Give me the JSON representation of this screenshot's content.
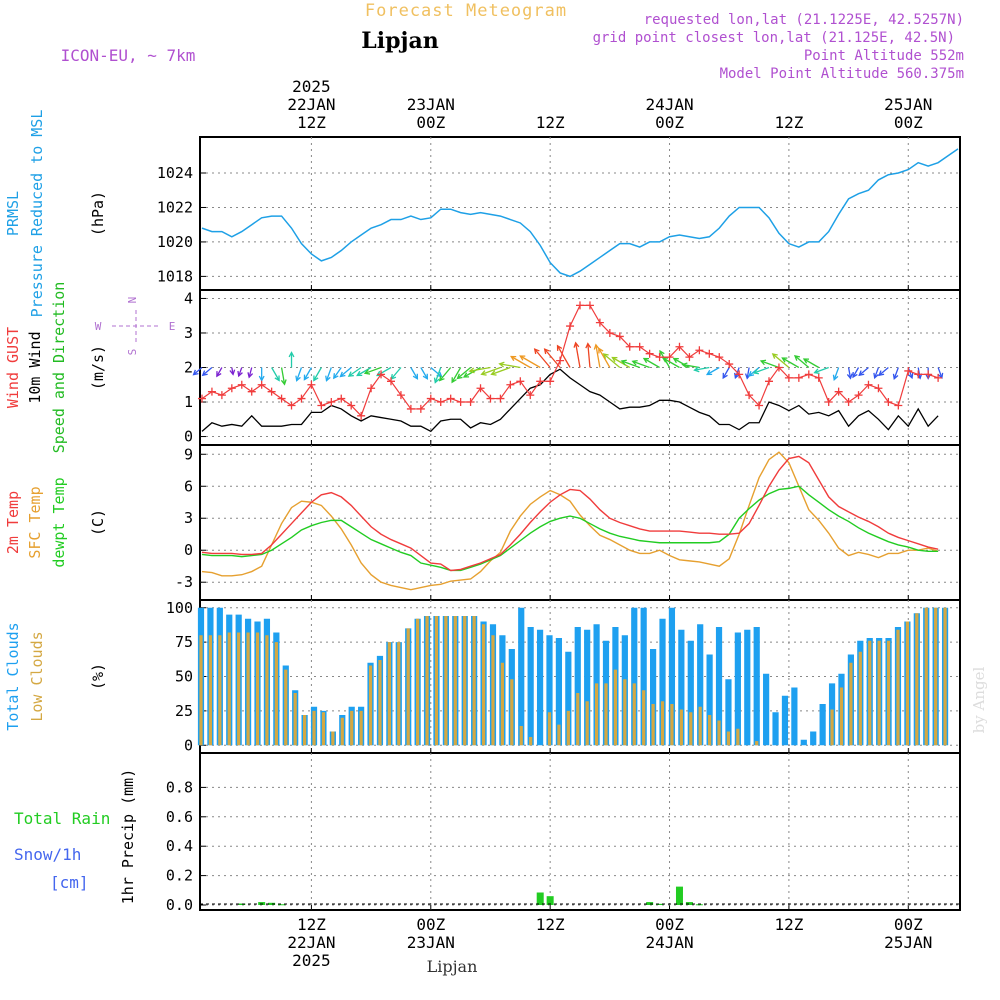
{
  "header": {
    "title_top": "Forecast Meteogram",
    "location": "Lipjan",
    "model": "ICON-EU, ~ 7km",
    "requested": "requested lon,lat (21.1225E, 42.5257N)",
    "grid_point": "grid point closest lon,lat (21.125E, 42.5N)",
    "point_altitude": "Point Altitude 552m",
    "model_altitude": "Model Point Altitude 560.375m",
    "footer_location": "Lipjan",
    "watermark": "by Angel"
  },
  "colors": {
    "prmsl": "#1ea0e6",
    "gust": "#f03c3c",
    "wind": "#000000",
    "wind_dir_label": "#22bb22",
    "temp2m": "#f03c3c",
    "sfc_temp": "#e6a030",
    "dewpt": "#22cc22",
    "total_clouds": "#1ea0f0",
    "low_clouds": "#d4a843",
    "rain": "#22cc22",
    "snow": "#4466ee",
    "axis_label": "#000000",
    "compass": "#b070d0",
    "header_purple": "#b050d0",
    "header_orange": "#f0c060",
    "grid": "#888888"
  },
  "time_axis": {
    "top_ticks": [
      {
        "t": 0,
        "lines": [
          "2025",
          "22JAN",
          "12Z"
        ]
      },
      {
        "t": 12,
        "lines": [
          "23JAN",
          "00Z"
        ]
      },
      {
        "t": 24,
        "lines": [
          "12Z"
        ]
      },
      {
        "t": 36,
        "lines": [
          "24JAN",
          "00Z"
        ]
      },
      {
        "t": 48,
        "lines": [
          "12Z"
        ]
      },
      {
        "t": 60,
        "lines": [
          "25JAN",
          "00Z"
        ]
      }
    ],
    "bottom_ticks": [
      {
        "t": 0,
        "lines": [
          "12Z",
          "22JAN",
          "2025"
        ]
      },
      {
        "t": 12,
        "lines": [
          "00Z",
          "23JAN"
        ]
      },
      {
        "t": 24,
        "lines": [
          "12Z"
        ]
      },
      {
        "t": 36,
        "lines": [
          "00Z",
          "24JAN"
        ]
      },
      {
        "t": 48,
        "lines": [
          "12Z"
        ]
      },
      {
        "t": 60,
        "lines": [
          "00Z",
          "25JAN"
        ]
      }
    ],
    "t_min": -11.2,
    "t_max": 65.2
  },
  "panels": [
    {
      "id": "pressure",
      "labels": [
        {
          "text": "PRMSL",
          "color": "#1ea0e6"
        },
        {
          "text": "Pressure Reduced to MSL",
          "color": "#1ea0e6"
        }
      ],
      "unit": "(hPa)",
      "ylim": [
        1017.5,
        1025.8
      ],
      "yticks": [
        1018,
        1020,
        1022,
        1024
      ]
    },
    {
      "id": "wind",
      "labels": [
        {
          "text": "Wind GUST",
          "color": "#f03c3c"
        },
        {
          "text": "10m Wind",
          "color": "#000000"
        },
        {
          "text": "Speed and Direction",
          "color": "#22bb22"
        }
      ],
      "unit": "(m/s)",
      "ylim": [
        -0.1,
        4.1
      ],
      "yticks": [
        0,
        1,
        2,
        3,
        4
      ],
      "compass": {
        "n": "N",
        "s": "S",
        "w": "W",
        "e": "E"
      }
    },
    {
      "id": "temp",
      "labels": [
        {
          "text": "2m Temp",
          "color": "#f03c3c"
        },
        {
          "text": "SFC Temp",
          "color": "#e6a030"
        },
        {
          "text": "dewpt Temp",
          "color": "#22cc22"
        }
      ],
      "unit": "(C)",
      "ylim": [
        -4.2,
        9.4
      ],
      "yticks": [
        -3,
        0,
        3,
        6,
        9
      ]
    },
    {
      "id": "clouds",
      "labels": [
        {
          "text": "Total Clouds",
          "color": "#1ea0f0"
        },
        {
          "text": "Low Clouds",
          "color": "#d4a843"
        }
      ],
      "unit": "(%)",
      "ylim": [
        -2,
        102
      ],
      "yticks": [
        0,
        25,
        50,
        75,
        100
      ]
    },
    {
      "id": "precip",
      "labels": [],
      "unit": "1hr Precip (mm)",
      "ylim": [
        0,
        1.0
      ],
      "yticks": [
        0,
        0.2,
        0.4,
        0.6,
        0.8
      ],
      "legend": {
        "total_rain": "Total  Rain",
        "snow": "Snow/1h",
        "snow_unit": "[cm]"
      }
    }
  ],
  "chart_data": {
    "type": "line",
    "x_unit": "hours from 22JAN 12Z",
    "pressure": {
      "name": "PRMSL",
      "x": [
        -11,
        -10,
        -9,
        -8,
        -7,
        -6,
        -5,
        -4,
        -3,
        -2,
        -1,
        0,
        1,
        2,
        3,
        4,
        5,
        6,
        7,
        8,
        9,
        10,
        11,
        12,
        13,
        14,
        15,
        16,
        17,
        18,
        19,
        20,
        21,
        22,
        23,
        24,
        25,
        26,
        27,
        28,
        29,
        30,
        31,
        32,
        33,
        34,
        35,
        36,
        37,
        38,
        39,
        40,
        41,
        42,
        43,
        44,
        45,
        46,
        47,
        48,
        49,
        50,
        51,
        52,
        53,
        54,
        55,
        56,
        57,
        58,
        59,
        60,
        61,
        62,
        63,
        64,
        65
      ],
      "values": [
        1020.8,
        1020.6,
        1020.6,
        1020.3,
        1020.6,
        1021.0,
        1021.4,
        1021.5,
        1021.5,
        1020.8,
        1019.9,
        1019.3,
        1018.9,
        1019.1,
        1019.5,
        1020.0,
        1020.4,
        1020.8,
        1021.0,
        1021.3,
        1021.3,
        1021.5,
        1021.3,
        1021.4,
        1021.9,
        1021.9,
        1021.7,
        1021.6,
        1021.7,
        1021.6,
        1021.5,
        1021.3,
        1021.1,
        1020.6,
        1019.8,
        1018.8,
        1018.2,
        1018.0,
        1018.3,
        1018.7,
        1019.1,
        1019.5,
        1019.9,
        1019.9,
        1019.7,
        1020.0,
        1020.0,
        1020.3,
        1020.4,
        1020.3,
        1020.2,
        1020.3,
        1020.8,
        1021.5,
        1022.0,
        1022.0,
        1022.0,
        1021.4,
        1020.5,
        1019.9,
        1019.7,
        1020.0,
        1020.0,
        1020.6,
        1021.6,
        1022.5,
        1022.8,
        1023.0,
        1023.6,
        1023.9,
        1024.0,
        1024.2,
        1024.6,
        1024.4,
        1024.6,
        1025.0,
        1025.4
      ]
    },
    "gust": {
      "name": "Wind GUST",
      "values": [
        1.1,
        1.3,
        1.2,
        1.4,
        1.5,
        1.3,
        1.5,
        1.3,
        1.1,
        0.9,
        1.1,
        1.5,
        0.9,
        1.0,
        1.1,
        0.9,
        0.6,
        1.4,
        1.8,
        1.6,
        1.2,
        0.8,
        0.8,
        1.1,
        1.0,
        1.1,
        1.0,
        1.0,
        1.4,
        1.1,
        1.1,
        1.5,
        1.6,
        1.2,
        1.6,
        1.6,
        2.2,
        3.2,
        3.8,
        3.8,
        3.3,
        3.0,
        2.9,
        2.6,
        2.6,
        2.4,
        2.3,
        2.3,
        2.6,
        2.3,
        2.5,
        2.4,
        2.3,
        2.1,
        1.8,
        1.2,
        0.9,
        1.6,
        2.0,
        1.7,
        1.7,
        1.8,
        1.7,
        1.0,
        1.3,
        1.0,
        1.2,
        1.5,
        1.4,
        1.0,
        0.9,
        1.9,
        1.8,
        1.8,
        1.7
      ]
    },
    "wind10m": {
      "name": "10m Wind",
      "values": [
        0.15,
        0.4,
        0.3,
        0.35,
        0.3,
        0.6,
        0.3,
        0.3,
        0.3,
        0.35,
        0.35,
        0.7,
        0.7,
        0.9,
        0.8,
        0.6,
        0.45,
        0.6,
        0.55,
        0.5,
        0.45,
        0.3,
        0.3,
        0.15,
        0.45,
        0.5,
        0.5,
        0.25,
        0.4,
        0.35,
        0.5,
        0.8,
        1.1,
        1.4,
        1.5,
        1.8,
        1.95,
        1.7,
        1.5,
        1.3,
        1.2,
        1.0,
        0.8,
        0.85,
        0.85,
        0.9,
        1.05,
        1.05,
        1.0,
        0.85,
        0.7,
        0.6,
        0.35,
        0.35,
        0.2,
        0.4,
        0.4,
        1.0,
        0.9,
        0.75,
        0.9,
        0.65,
        0.7,
        0.6,
        0.75,
        0.3,
        0.6,
        0.75,
        0.5,
        0.2,
        0.6,
        0.3,
        0.8,
        0.3,
        0.6
      ]
    },
    "temp2m": {
      "name": "2m Temp",
      "values": [
        -0.2,
        -0.3,
        -0.3,
        -0.3,
        -0.4,
        -0.4,
        -0.3,
        0.5,
        1.5,
        2.5,
        3.5,
        4.5,
        5.2,
        5.4,
        5.0,
        4.2,
        3.2,
        2.2,
        1.5,
        1.0,
        0.6,
        0.2,
        -0.5,
        -1.2,
        -1.3,
        -1.9,
        -1.8,
        -1.5,
        -1.2,
        -0.8,
        -0.4,
        0.5,
        1.5,
        2.6,
        3.6,
        4.5,
        5.2,
        5.7,
        5.6,
        4.8,
        3.8,
        3.0,
        2.6,
        2.3,
        2.0,
        1.8,
        1.8,
        1.8,
        1.8,
        1.7,
        1.6,
        1.6,
        1.5,
        1.5,
        1.6,
        2.5,
        4.2,
        6.0,
        7.5,
        8.6,
        8.8,
        8.2,
        6.6,
        5.0,
        4.1,
        3.6,
        3.1,
        2.7,
        2.2,
        1.6,
        1.2,
        0.9,
        0.6,
        0.3,
        0.1
      ]
    },
    "sfc_temp": {
      "name": "SFC Temp",
      "values": [
        -2.0,
        -2.1,
        -2.4,
        -2.4,
        -2.3,
        -2.0,
        -1.5,
        0.5,
        2.5,
        4.0,
        4.6,
        4.5,
        4.2,
        3.2,
        2.0,
        0.5,
        -1.2,
        -2.3,
        -3.0,
        -3.3,
        -3.5,
        -3.7,
        -3.5,
        -3.3,
        -3.2,
        -2.9,
        -2.8,
        -2.7,
        -2.0,
        -1.0,
        -0.2,
        1.8,
        3.2,
        4.3,
        5.0,
        5.6,
        5.2,
        4.6,
        3.3,
        2.3,
        1.4,
        1.0,
        0.5,
        0.0,
        -0.3,
        -0.3,
        0.0,
        -0.5,
        -0.9,
        -1.0,
        -1.1,
        -1.3,
        -1.5,
        -0.8,
        1.5,
        4.2,
        6.8,
        8.5,
        9.2,
        8.2,
        6.0,
        3.8,
        2.8,
        1.6,
        0.2,
        -0.5,
        -0.2,
        -0.4,
        -0.7,
        -0.3,
        -0.3,
        0.0,
        0.0,
        0.2,
        -0.1
      ]
    },
    "dewpt": {
      "name": "dewpt Temp",
      "values": [
        -0.4,
        -0.5,
        -0.5,
        -0.5,
        -0.6,
        -0.5,
        -0.4,
        0.0,
        0.6,
        1.2,
        1.9,
        2.3,
        2.6,
        2.8,
        2.8,
        2.2,
        1.6,
        1.0,
        0.6,
        0.2,
        -0.2,
        -0.5,
        -1.2,
        -1.4,
        -1.6,
        -1.9,
        -1.9,
        -1.6,
        -1.3,
        -0.9,
        -0.5,
        0.2,
        0.9,
        1.6,
        2.2,
        2.7,
        3.0,
        3.2,
        3.0,
        2.5,
        2.0,
        1.6,
        1.3,
        1.1,
        0.9,
        0.8,
        0.7,
        0.7,
        0.7,
        0.7,
        0.7,
        0.7,
        0.8,
        1.5,
        3.0,
        3.9,
        4.7,
        5.3,
        5.7,
        5.8,
        6.0,
        5.2,
        4.5,
        3.8,
        3.2,
        2.7,
        2.1,
        1.6,
        1.2,
        0.8,
        0.5,
        0.3,
        0.0,
        -0.1,
        -0.1
      ]
    },
    "total_clouds": {
      "name": "Total Clouds",
      "values": [
        100,
        100,
        100,
        95,
        95,
        92,
        90,
        92,
        82,
        58,
        40,
        22,
        28,
        25,
        10,
        22,
        28,
        28,
        60,
        65,
        75,
        75,
        85,
        92,
        94,
        94,
        94,
        94,
        94,
        94,
        90,
        88,
        80,
        70,
        100,
        86,
        84,
        80,
        78,
        68,
        86,
        84,
        88,
        76,
        86,
        80,
        100,
        100,
        70,
        92,
        100,
        84,
        76,
        88,
        66,
        86,
        48,
        82,
        84,
        86,
        52,
        24,
        36,
        42,
        4,
        10,
        30,
        45,
        52,
        66,
        76,
        78,
        78,
        78,
        86,
        90,
        96,
        100,
        100,
        100
      ]
    },
    "low_clouds": {
      "name": "Low Clouds",
      "values": [
        80,
        80,
        80,
        82,
        82,
        82,
        82,
        80,
        75,
        55,
        38,
        22,
        25,
        24,
        10,
        20,
        25,
        25,
        58,
        62,
        75,
        75,
        85,
        92,
        94,
        94,
        94,
        94,
        94,
        94,
        88,
        80,
        60,
        48,
        14,
        6,
        0,
        24,
        15,
        25,
        38,
        32,
        45,
        45,
        55,
        48,
        45,
        40,
        30,
        32,
        30,
        26,
        24,
        28,
        22,
        18,
        10,
        12,
        0,
        3,
        0,
        0,
        0,
        0,
        0,
        0,
        0,
        26,
        42,
        60,
        68,
        76,
        76,
        76,
        84,
        90,
        96,
        100,
        100,
        100
      ]
    },
    "precip": {
      "name": "Total Rain",
      "x": [
        -7,
        -5,
        -4,
        -3,
        23,
        24,
        34,
        35,
        37,
        38,
        39
      ],
      "values": [
        0.01,
        0.02,
        0.015,
        0.005,
        0.085,
        0.06,
        0.02,
        0.008,
        0.125,
        0.02,
        0.005
      ]
    },
    "wind_dir_deg": [
      230,
      230,
      210,
      170,
      200,
      195,
      180,
      150,
      170,
      0,
      200,
      210,
      210,
      200,
      215,
      230,
      235,
      240,
      250,
      240,
      220,
      150,
      150,
      130,
      200,
      220,
      210,
      230,
      240,
      260,
      250,
      250,
      280,
      300,
      300,
      320,
      320,
      330,
      350,
      355,
      350,
      330,
      310,
      300,
      290,
      290,
      300,
      330,
      300,
      300,
      280,
      260,
      240,
      210,
      200,
      190,
      230,
      250,
      290,
      310,
      300,
      310,
      300,
      250,
      200,
      170,
      210,
      230,
      200,
      230,
      200,
      160,
      170,
      180,
      160
    ],
    "wind_dir_speed": [
      2.0,
      2.1,
      1.9,
      1.6,
      1.8,
      1.9,
      2.2,
      2.4,
      2.6,
      2.4,
      2.3,
      2.3,
      2.4,
      2.3,
      2.2,
      2.3,
      2.4,
      2.5,
      2.6,
      2.5,
      2.4,
      2.2,
      2.2,
      2.3,
      2.5,
      2.6,
      2.6,
      2.6,
      2.8,
      3.0,
      2.9,
      2.9,
      3.0,
      3.1,
      3.2,
      3.3,
      3.3,
      3.4,
      3.4,
      3.3,
      3.2,
      3.1,
      3.0,
      2.9,
      2.8,
      2.7,
      2.7,
      2.8,
      2.8,
      2.7,
      2.6,
      2.4,
      2.3,
      2.1,
      2.0,
      2.0,
      2.2,
      2.5,
      2.8,
      3.0,
      2.8,
      2.7,
      2.6,
      2.4,
      2.2,
      2.0,
      2.0,
      2.1,
      2.0,
      2.1,
      2.1,
      2.0,
      2.0,
      2.0,
      2.0
    ]
  }
}
